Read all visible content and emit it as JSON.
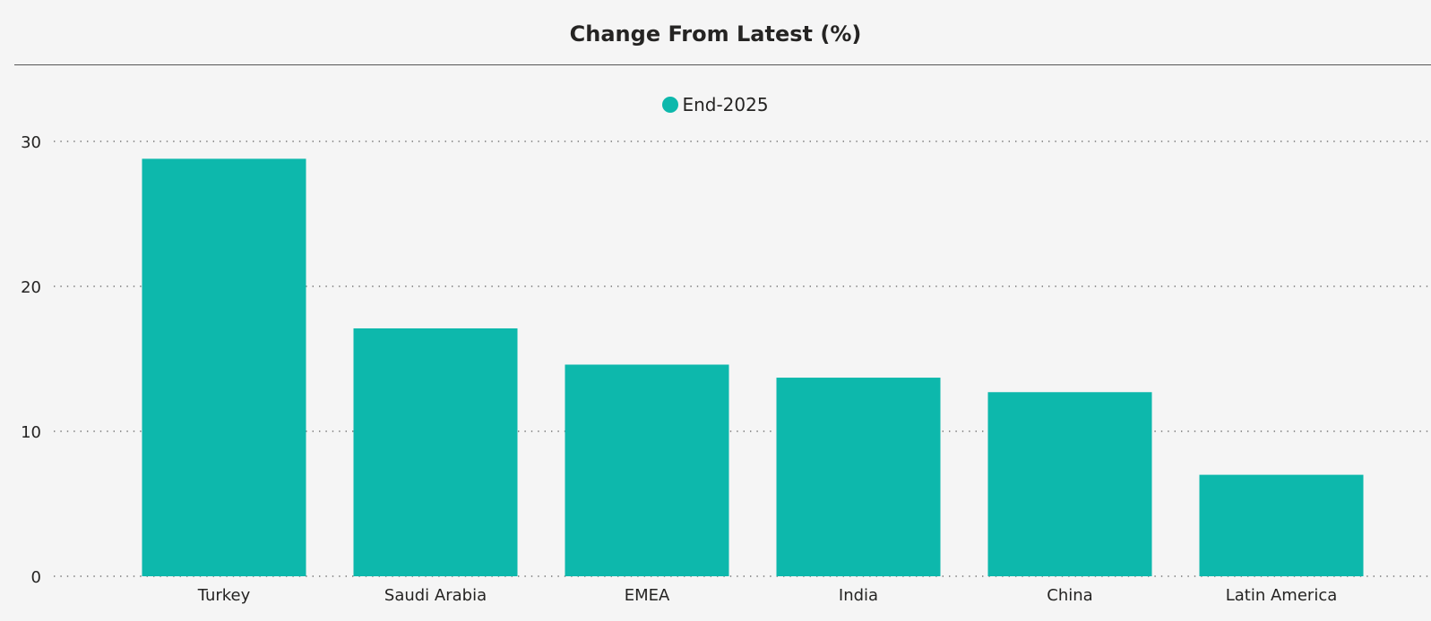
{
  "chart_data": {
    "type": "bar",
    "title": "Change From Latest (%)",
    "xlabel": "",
    "ylabel": "",
    "categories": [
      "Turkey",
      "Saudi Arabia",
      "EMEA",
      "India",
      "China",
      "Latin America"
    ],
    "series": [
      {
        "name": "End-2025",
        "values": [
          28.8,
          17.1,
          14.6,
          13.7,
          12.7,
          7.0
        ],
        "color": "#0db8ac"
      }
    ],
    "ylim": [
      0,
      30
    ],
    "yticks": [
      "0",
      "10",
      "20",
      "30"
    ],
    "grid": true,
    "legend_position": "top-center"
  }
}
